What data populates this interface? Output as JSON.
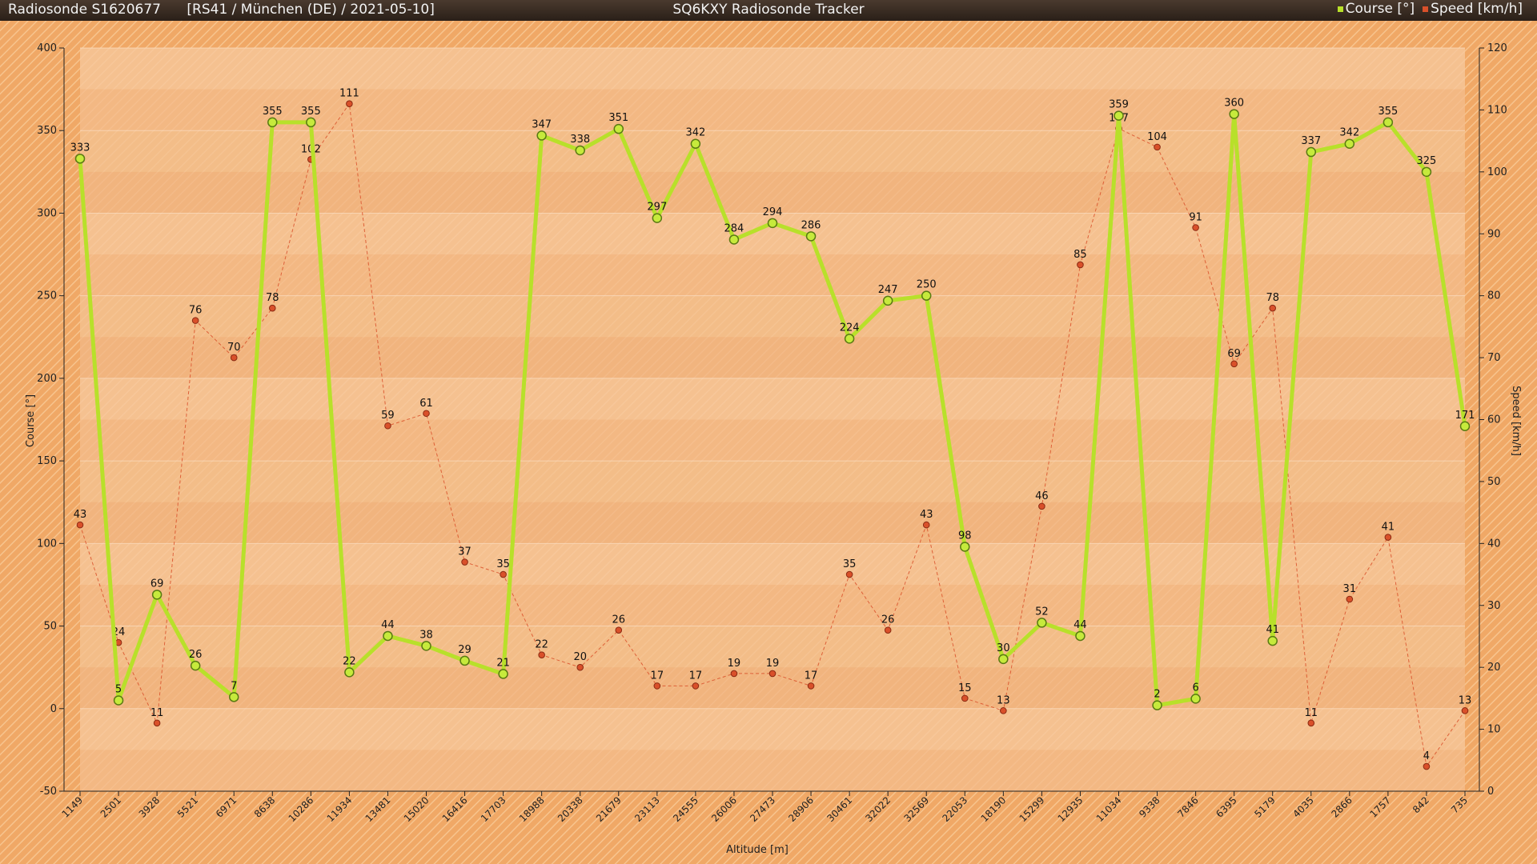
{
  "header": {
    "sonde": "Radiosonde S1620677",
    "info": "[RS41 / München (DE) / 2021-05-10]",
    "app_title": "SQ6KXY Radiosonde Tracker"
  },
  "colors": {
    "course": "#b8e02a",
    "speed": "#d9502a",
    "background": "#f0a866"
  },
  "chart_data": {
    "type": "line",
    "title": "SQ6KXY Radiosonde Tracker",
    "xlabel": "Altitude [m]",
    "ylabel": "Course [°]",
    "ylabel_right": "Speed [km/h]",
    "categories": [
      "1149",
      "2501",
      "3928",
      "5521",
      "6971",
      "8638",
      "10286",
      "11934",
      "13481",
      "15020",
      "16416",
      "17703",
      "18988",
      "20338",
      "21679",
      "23113",
      "24555",
      "26006",
      "27473",
      "28906",
      "30461",
      "32022",
      "32569",
      "22053",
      "18190",
      "15299",
      "12935",
      "11034",
      "9338",
      "7846",
      "6395",
      "5179",
      "4035",
      "2866",
      "1757",
      "842",
      "735"
    ],
    "ylim": [
      -50,
      400
    ],
    "yticks": [
      -50,
      0,
      50,
      100,
      150,
      200,
      250,
      300,
      350,
      400
    ],
    "ylim_right": [
      0,
      120
    ],
    "yticks_right": [
      0,
      10,
      20,
      30,
      40,
      50,
      60,
      70,
      80,
      90,
      100,
      110,
      120
    ],
    "legend": "top-right",
    "series": [
      {
        "name": "Course [°]",
        "axis": "left",
        "values": [
          333,
          5,
          69,
          26,
          7,
          355,
          355,
          22,
          44,
          38,
          29,
          21,
          347,
          338,
          351,
          297,
          342,
          284,
          294,
          286,
          224,
          247,
          250,
          98,
          30,
          52,
          44,
          359,
          2,
          6,
          360,
          41,
          337,
          342,
          355,
          325,
          171
        ]
      },
      {
        "name": "Speed [km/h]",
        "axis": "right",
        "values": [
          43,
          24,
          11,
          76,
          70,
          78,
          102,
          111,
          59,
          61,
          37,
          35,
          22,
          20,
          26,
          17,
          17,
          19,
          19,
          17,
          35,
          26,
          43,
          15,
          13,
          46,
          85,
          107,
          104,
          91,
          69,
          78,
          11,
          31,
          41,
          4,
          13
        ]
      }
    ]
  }
}
